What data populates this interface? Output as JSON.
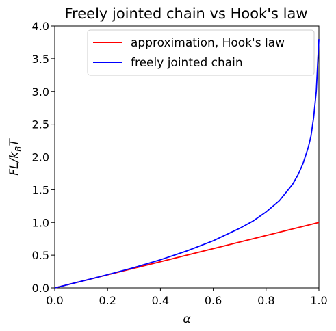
{
  "chart_data": {
    "type": "line",
    "title": "Freely jointed chain vs Hook's law",
    "xlabel": "α",
    "ylabel_parts": [
      "FL/k",
      "B",
      "T"
    ],
    "xlim": [
      0.0,
      1.0
    ],
    "ylim": [
      0.0,
      4.0
    ],
    "xticks": [
      "0.0",
      "0.2",
      "0.4",
      "0.6",
      "0.8",
      "1.0"
    ],
    "yticks": [
      "0.0",
      "0.5",
      "1.0",
      "1.5",
      "2.0",
      "2.5",
      "3.0",
      "3.5",
      "4.0"
    ],
    "legend_position": "upper-right",
    "grid": false,
    "series": [
      {
        "name": "approximation, Hook's law",
        "color": "#ff0000",
        "x": [
          0.0,
          1.0
        ],
        "y": [
          0.0,
          1.0
        ]
      },
      {
        "name": "freely jointed chain",
        "color": "#0000ff",
        "x": [
          0.0,
          0.1,
          0.2,
          0.3,
          0.4,
          0.5,
          0.6,
          0.7,
          0.75,
          0.8,
          0.85,
          0.9,
          0.92,
          0.94,
          0.96,
          0.97,
          0.98,
          0.99,
          0.995,
          1.0
        ],
        "y": [
          0.0,
          0.1,
          0.203,
          0.311,
          0.43,
          0.565,
          0.72,
          0.91,
          1.02,
          1.16,
          1.33,
          1.58,
          1.72,
          1.9,
          2.15,
          2.32,
          2.6,
          3.0,
          3.4,
          3.8
        ]
      }
    ]
  }
}
